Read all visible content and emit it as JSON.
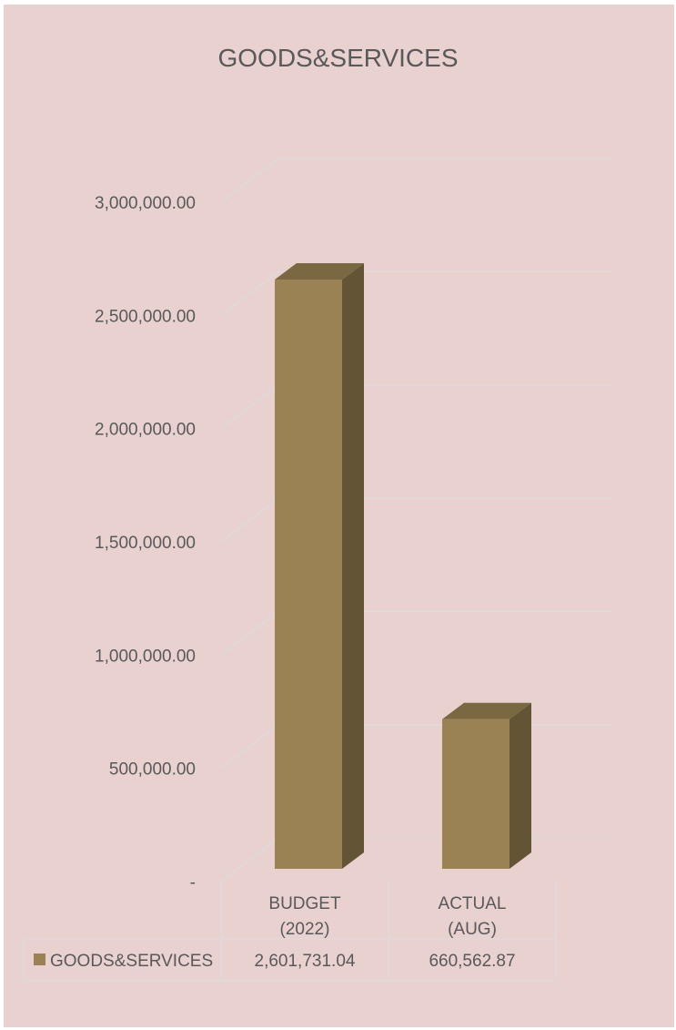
{
  "chart_data": {
    "type": "bar",
    "title": "GOODS&SERVICES",
    "categories": [
      [
        "BUDGET",
        "(2022)"
      ],
      [
        "ACTUAL",
        "(AUG)"
      ]
    ],
    "series": [
      {
        "name": "GOODS&SERVICES",
        "values": [
          2601731.04,
          660562.87
        ],
        "value_labels": [
          "2,601,731.04",
          "660,562.87"
        ]
      }
    ],
    "y_ticks": [
      0,
      500000,
      1000000,
      1500000,
      2000000,
      2500000,
      3000000
    ],
    "y_tick_labels": [
      "-",
      "500,000.00",
      "1,000,000.00",
      "1,500,000.00",
      "2,000,000.00",
      "2,500,000.00",
      "3,000,000.00"
    ],
    "ylim": [
      0,
      3000000
    ],
    "grid": true,
    "legend": "data-table",
    "colors": {
      "background": "#e8d1cf",
      "bar_front": "#9a8254",
      "bar_side": "#635436",
      "bar_top": "#7a6842",
      "grid": "#dcdcdc",
      "text": "#595959"
    }
  }
}
